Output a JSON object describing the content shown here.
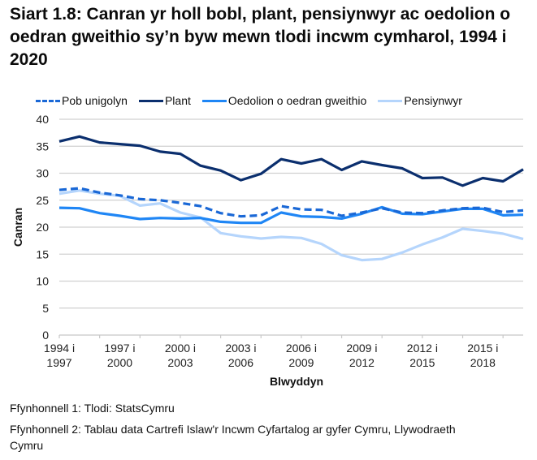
{
  "chart_data": {
    "type": "line",
    "title": "Siart 1.8: Canran yr holl bobl, plant, pensiynwyr ac oedolion o oedran gweithio sy’n byw mewn tlodi incwm cymharol, 1994 i 2020",
    "xlabel": "Blwyddyn",
    "ylabel": "Canran",
    "ylim": [
      0,
      40
    ],
    "yticks": [
      0,
      5,
      10,
      15,
      20,
      25,
      30,
      35,
      40
    ],
    "grid": true,
    "legend_position": "top",
    "categories": [
      "1994 i 1997",
      "1995 i 1998",
      "1996 i 1999",
      "1997 i 2000",
      "1998 i 2001",
      "1999 i 2002",
      "2000 i 2003",
      "2001 i 2004",
      "2002 i 2005",
      "2003 i 2006",
      "2004 i 2007",
      "2005 i 2008",
      "2006 i 2009",
      "2007 i 2010",
      "2008 i 2011",
      "2009 i 2012",
      "2010 i 2013",
      "2011 i 2014",
      "2012 i 2015",
      "2013 i 2016",
      "2014 i 2017",
      "2015 i 2018",
      "2016 i 2019",
      "2017 i 2020"
    ],
    "tick_labels": [
      {
        "index": 0,
        "line1": "1994 i",
        "line2": "1997"
      },
      {
        "index": 3,
        "line1": "1997 i",
        "line2": "2000"
      },
      {
        "index": 6,
        "line1": "2000 i",
        "line2": "2003"
      },
      {
        "index": 9,
        "line1": "2003 i",
        "line2": "2006"
      },
      {
        "index": 12,
        "line1": "2006 i",
        "line2": "2009"
      },
      {
        "index": 15,
        "line1": "2009 i",
        "line2": "2012"
      },
      {
        "index": 18,
        "line1": "2012 i",
        "line2": "2015"
      },
      {
        "index": 21,
        "line1": "2015 i",
        "line2": "2018"
      }
    ],
    "series": [
      {
        "name": "Pob unigolyn",
        "color": "#1a68d6",
        "dashed": true,
        "values": [
          26.9,
          27.2,
          26.4,
          25.9,
          25.2,
          25.0,
          24.5,
          23.9,
          22.6,
          22.0,
          22.2,
          23.9,
          23.3,
          23.2,
          22.1,
          22.7,
          23.5,
          22.7,
          22.6,
          23.1,
          23.5,
          23.6,
          22.8,
          23.1
        ]
      },
      {
        "name": "Plant",
        "color": "#0b2f6e",
        "dashed": false,
        "values": [
          35.9,
          36.8,
          35.7,
          35.4,
          35.1,
          34.0,
          33.6,
          31.4,
          30.5,
          28.7,
          29.9,
          32.6,
          31.8,
          32.6,
          30.6,
          32.2,
          31.5,
          30.9,
          29.1,
          29.2,
          27.7,
          29.1,
          28.5,
          30.7
        ]
      },
      {
        "name": "Oedolion o oedran gweithio",
        "color": "#1f86f5",
        "dashed": false,
        "values": [
          23.6,
          23.5,
          22.6,
          22.1,
          21.5,
          21.7,
          21.6,
          21.7,
          21.0,
          20.8,
          20.8,
          22.7,
          22.0,
          21.9,
          21.6,
          22.5,
          23.7,
          22.5,
          22.4,
          22.9,
          23.4,
          23.4,
          22.2,
          22.3
        ]
      },
      {
        "name": "Pensiynwyr",
        "color": "#b5d5fc",
        "dashed": false,
        "values": [
          26.2,
          26.8,
          26.2,
          25.8,
          24.0,
          24.4,
          22.7,
          21.8,
          18.9,
          18.3,
          17.9,
          18.2,
          18.0,
          16.9,
          14.8,
          13.9,
          14.1,
          15.3,
          16.8,
          18.1,
          19.7,
          19.3,
          18.8,
          17.8
        ]
      }
    ]
  },
  "footer": {
    "source1": "Ffynhonnell 1: Tlodi: StatsCymru",
    "source2_line1": "Ffynhonnell 2: Tablau data Cartrefi Islaw'r Incwm Cyfartalog ar gyfer Cymru, Llywodraeth",
    "source2_line2": "Cymru"
  }
}
